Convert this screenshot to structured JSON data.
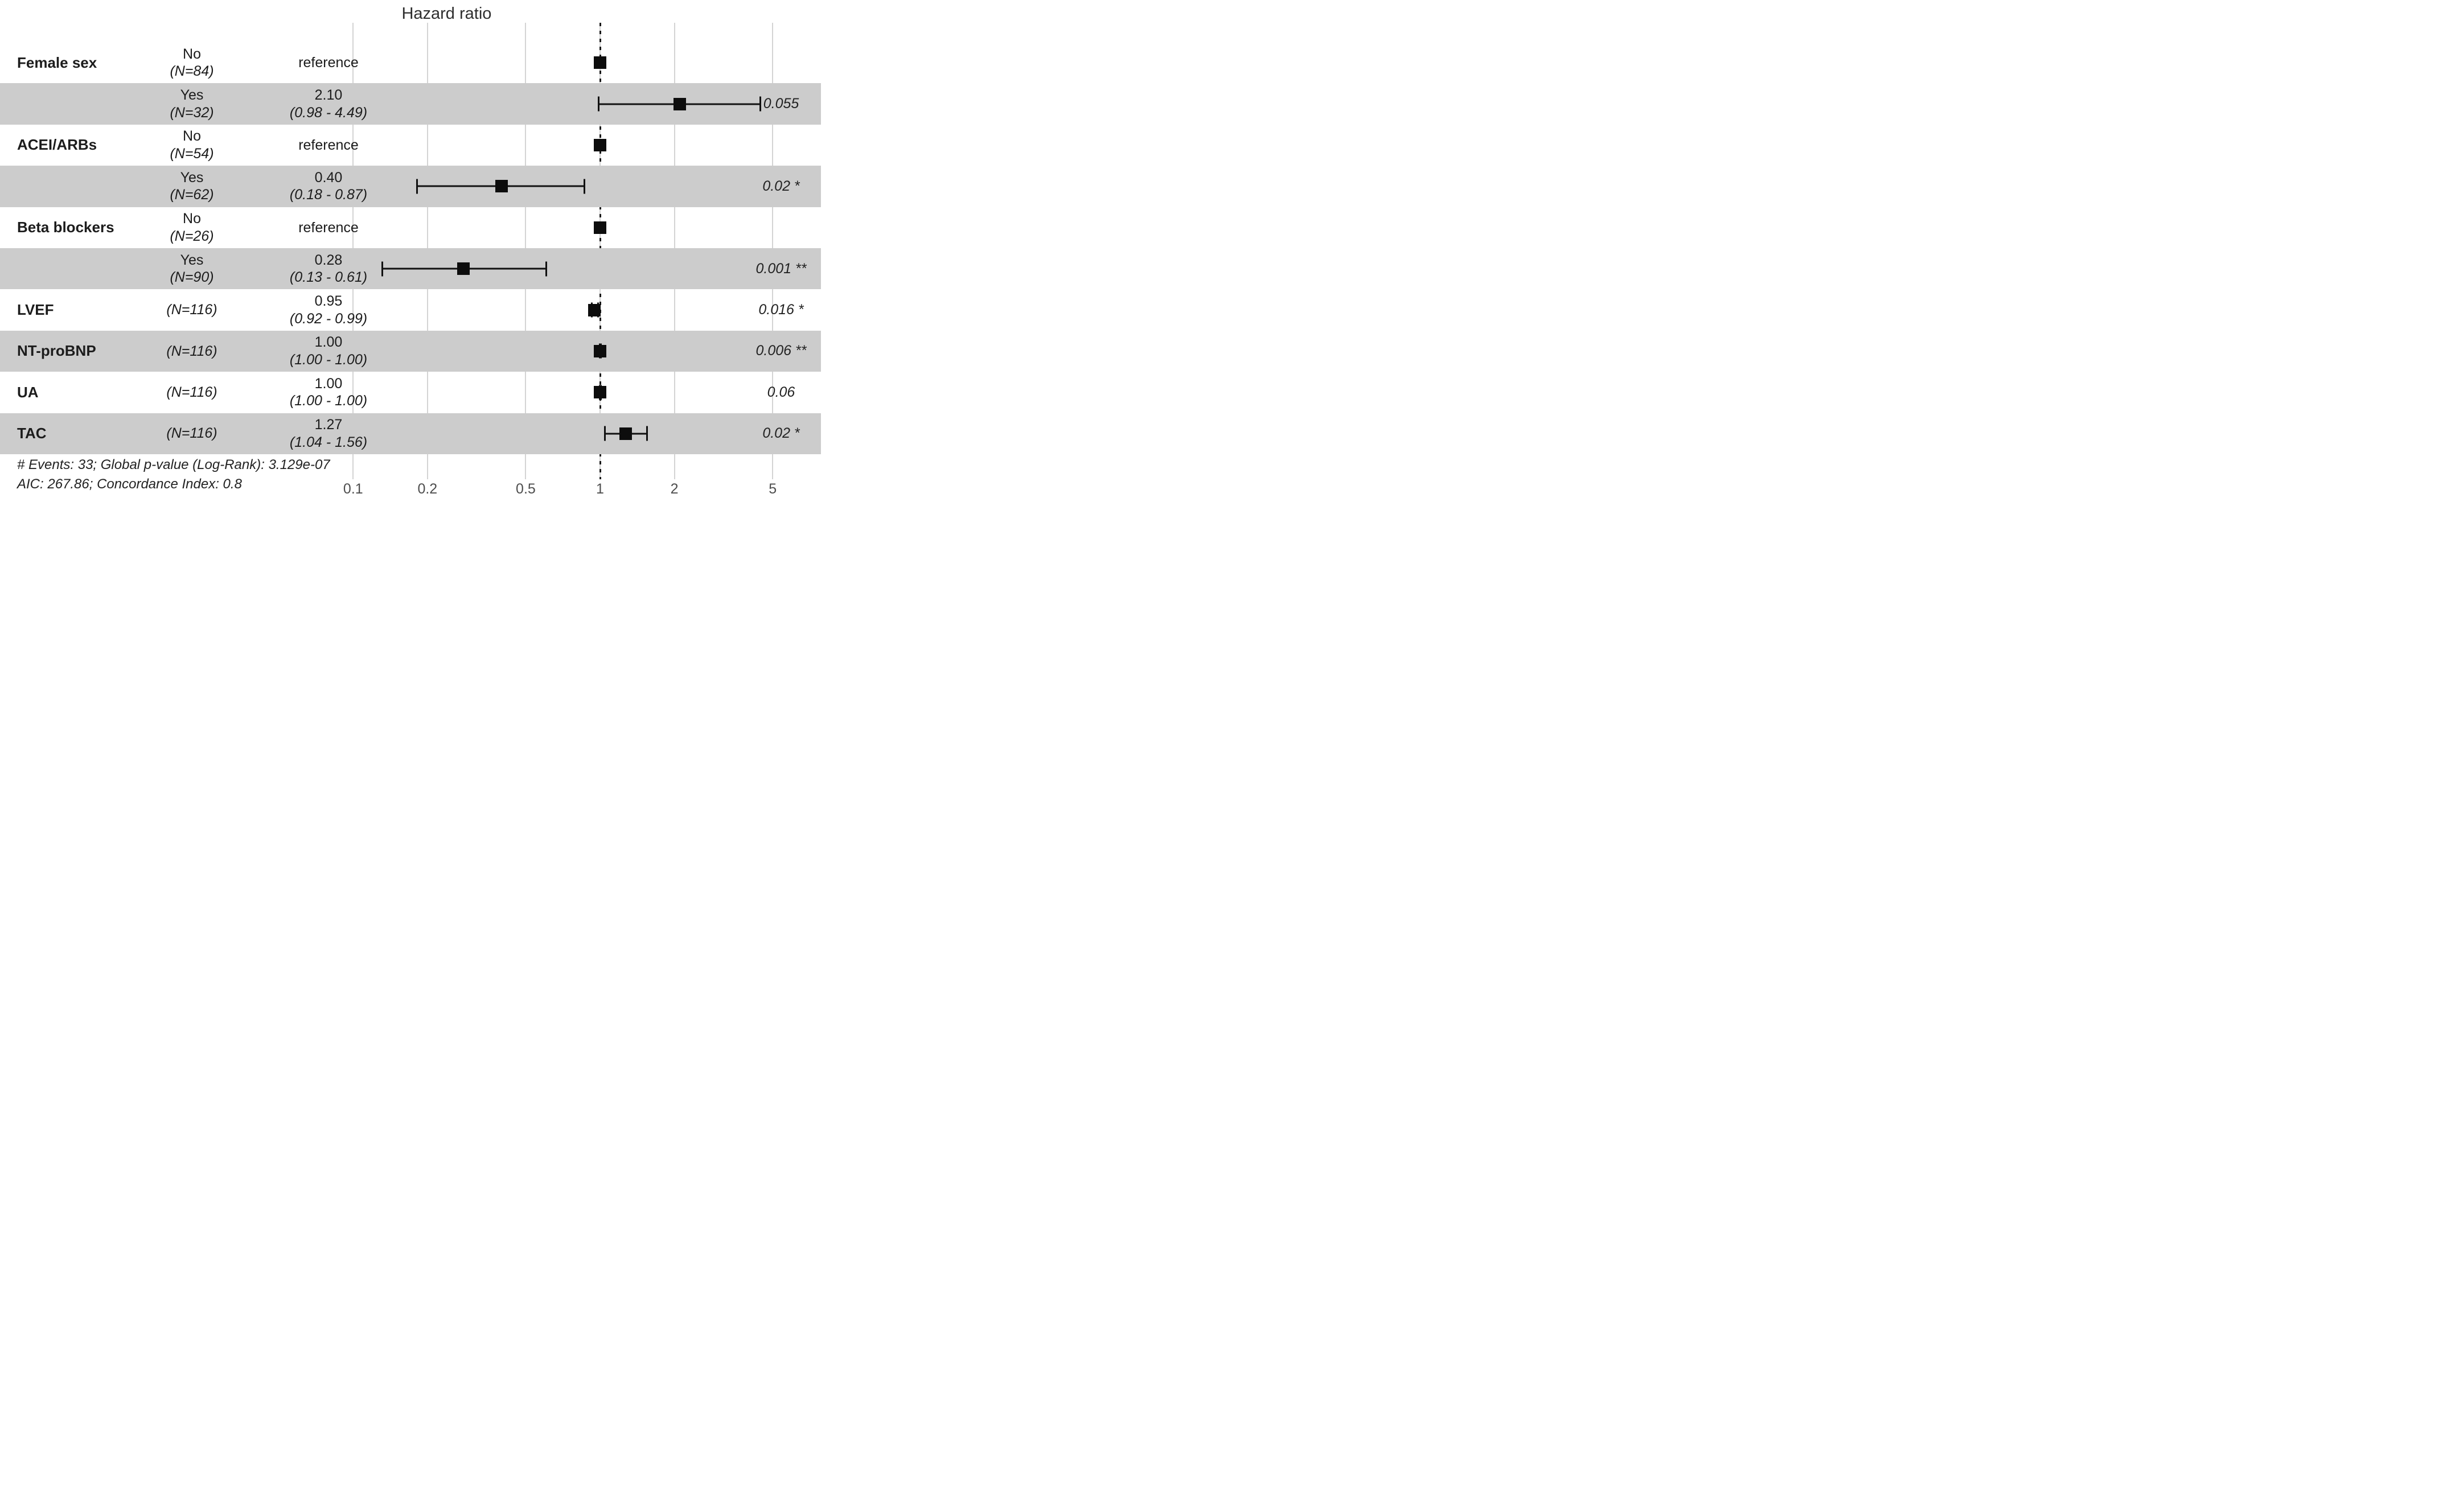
{
  "title": "Hazard ratio",
  "footer": {
    "line1": "# Events: 33; Global p-value (Log-Rank): 3.129e-07",
    "line2": "AIC: 267.86; Concordance Index: 0.8"
  },
  "colors": {
    "band": "#cccccc",
    "gridline": "#d4d4d4",
    "reference_line": "#1a1a1a",
    "marker": "#0d0d0d"
  },
  "chart_data": {
    "type": "forest-plot",
    "x_axis": {
      "scale": "log10",
      "ticks": [
        0.1,
        0.2,
        0.5,
        1,
        2,
        5
      ],
      "tick_labels": [
        "0.1",
        "0.2",
        "0.5",
        "1",
        "2",
        "5"
      ],
      "reference_line": 1,
      "range": [
        0.08,
        6.5
      ],
      "grid": true
    },
    "legend": null,
    "rows": [
      {
        "variable": "Female sex",
        "level": "No",
        "n": "(N=84)",
        "est": "reference",
        "ci": "",
        "p": "",
        "hr": 1.0,
        "lo": null,
        "hi": null
      },
      {
        "variable": "",
        "level": "Yes",
        "n": "(N=32)",
        "est": "2.10",
        "ci": "(0.98 - 4.49)",
        "p": "0.055",
        "hr": 2.1,
        "lo": 0.98,
        "hi": 4.49
      },
      {
        "variable": "ACEI/ARBs",
        "level": "No",
        "n": "(N=54)",
        "est": "reference",
        "ci": "",
        "p": "",
        "hr": 1.0,
        "lo": null,
        "hi": null
      },
      {
        "variable": "",
        "level": "Yes",
        "n": "(N=62)",
        "est": "0.40",
        "ci": "(0.18 - 0.87)",
        "p": "0.02 *",
        "hr": 0.4,
        "lo": 0.18,
        "hi": 0.87
      },
      {
        "variable": "Beta blockers",
        "level": "No",
        "n": "(N=26)",
        "est": "reference",
        "ci": "",
        "p": "",
        "hr": 1.0,
        "lo": null,
        "hi": null
      },
      {
        "variable": "",
        "level": "Yes",
        "n": "(N=90)",
        "est": "0.28",
        "ci": "(0.13 - 0.61)",
        "p": "0.001 **",
        "hr": 0.28,
        "lo": 0.13,
        "hi": 0.61
      },
      {
        "variable": "LVEF",
        "level": "",
        "n": "(N=116)",
        "est": "0.95",
        "ci": "(0.92 - 0.99)",
        "p": "0.016 *",
        "hr": 0.95,
        "lo": 0.92,
        "hi": 0.99
      },
      {
        "variable": "NT-proBNP",
        "level": "",
        "n": "(N=116)",
        "est": "1.00",
        "ci": "(1.00 - 1.00)",
        "p": "0.006 **",
        "hr": 1.0,
        "lo": 1.0,
        "hi": 1.0
      },
      {
        "variable": "UA",
        "level": "",
        "n": "(N=116)",
        "est": "1.00",
        "ci": "(1.00 - 1.00)",
        "p": "0.06",
        "hr": 1.0,
        "lo": 1.0,
        "hi": 1.0
      },
      {
        "variable": "TAC",
        "level": "",
        "n": "(N=116)",
        "est": "1.27",
        "ci": "(1.04 - 1.56)",
        "p": "0.02 *",
        "hr": 1.27,
        "lo": 1.04,
        "hi": 1.56
      }
    ]
  }
}
